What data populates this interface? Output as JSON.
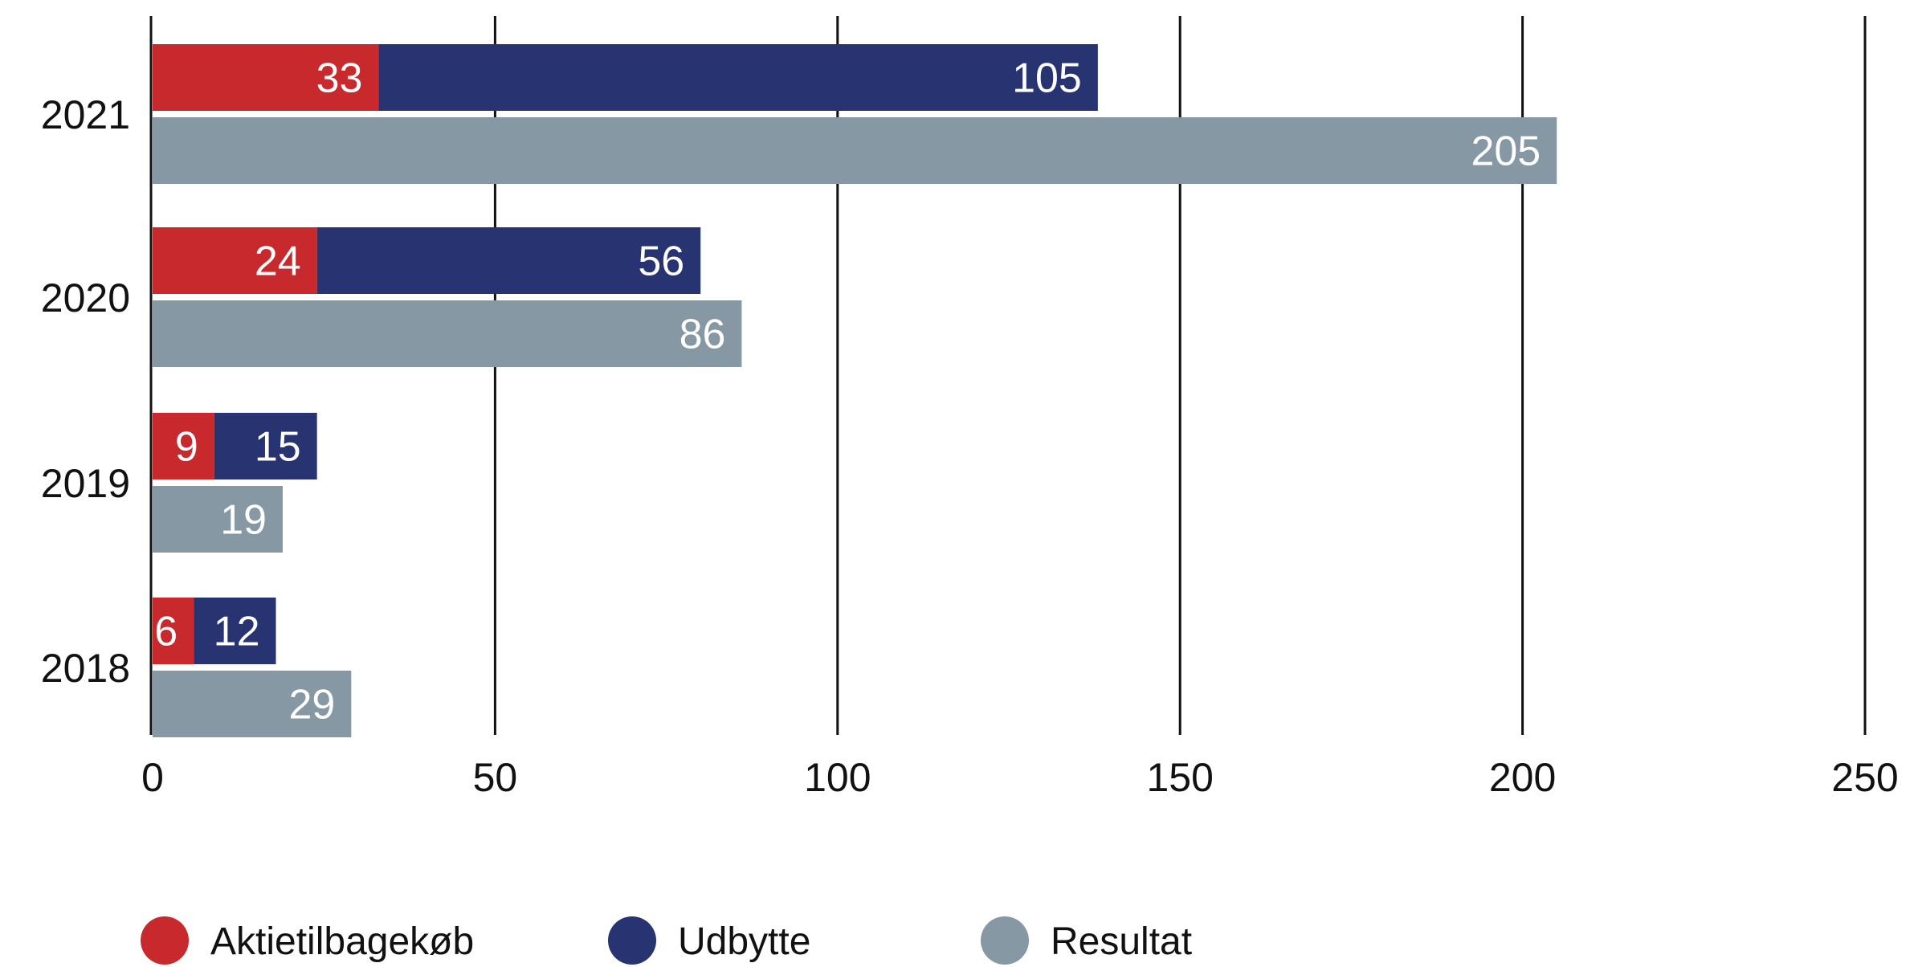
{
  "chart_data": {
    "type": "bar",
    "orientation": "horizontal",
    "title": "",
    "xlabel": "",
    "ylabel": "",
    "xlim": [
      0,
      250
    ],
    "x_ticks": [
      "0",
      "50",
      "100",
      "150",
      "200",
      "250"
    ],
    "grid": "vertical",
    "categories": [
      "2021",
      "2020",
      "2019",
      "2018"
    ],
    "stacked_group": {
      "stacked": true,
      "series": [
        {
          "name": "Aktietilbagekøb",
          "color": "#c8292d",
          "values": [
            33,
            24,
            9,
            6
          ]
        },
        {
          "name": "Udbytte",
          "color": "#283371",
          "values": [
            105,
            56,
            15,
            12
          ]
        }
      ]
    },
    "separate_series": [
      {
        "name": "Resultat",
        "color": "#8598a4",
        "values": [
          205,
          86,
          19,
          29
        ]
      }
    ],
    "legend": {
      "position": "bottom-left",
      "items": [
        {
          "name": "Aktietilbagekøb",
          "color": "#c8292d"
        },
        {
          "name": "Udbytte",
          "color": "#283371"
        },
        {
          "name": "Resultat",
          "color": "#8598a4"
        }
      ]
    }
  }
}
